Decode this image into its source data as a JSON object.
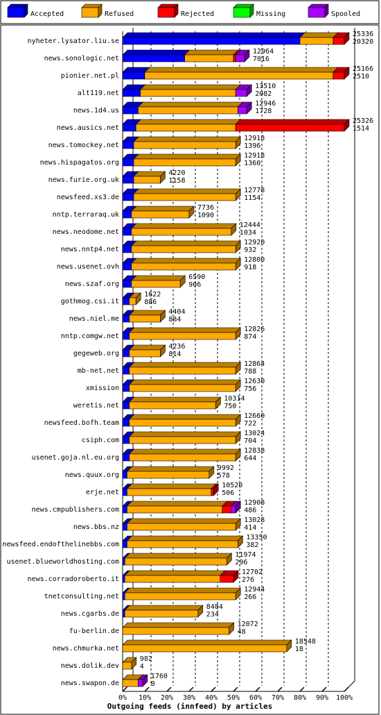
{
  "chart_data": {
    "type": "bar",
    "orientation": "horizontal",
    "stacked": true,
    "title": "Outgoing feeds (innfeed) by articles",
    "xlabel": "",
    "ylabel": "",
    "xlim": [
      0,
      100
    ],
    "x_ticks": [
      "0%",
      "10%",
      "20%",
      "30%",
      "40%",
      "50%",
      "60%",
      "70%",
      "80%",
      "90%",
      "100%"
    ],
    "grid": true,
    "legend_position": "top",
    "series": [
      {
        "name": "Accepted",
        "color": "#0000ff"
      },
      {
        "name": "Refused",
        "color": "#ffaa00"
      },
      {
        "name": "Rejected",
        "color": "#ff0000"
      },
      {
        "name": "Missing",
        "color": "#00ff00"
      },
      {
        "name": "Spooled",
        "color": "#aa00ff"
      }
    ],
    "rows": [
      {
        "label": "nyheter.lysator.liu.se",
        "offered": "25336",
        "accepted": "20320",
        "pct": [
          80,
          15,
          5,
          0,
          0
        ]
      },
      {
        "label": "news.sonologic.net",
        "offered": "12964",
        "accepted": "7016",
        "pct": [
          28,
          22,
          1,
          0,
          4
        ]
      },
      {
        "label": "pionier.net.pl",
        "offered": "25166",
        "accepted": "2510",
        "pct": [
          10,
          85,
          5,
          0,
          0
        ]
      },
      {
        "label": "alt119.net",
        "offered": "13510",
        "accepted": "2082",
        "pct": [
          8,
          43,
          0,
          0,
          5
        ]
      },
      {
        "label": "news.1d4.us",
        "offered": "12946",
        "accepted": "1728",
        "pct": [
          7,
          45,
          0,
          0,
          4
        ]
      },
      {
        "label": "news.ausics.net",
        "offered": "25326",
        "accepted": "1514",
        "pct": [
          6,
          45,
          49,
          0,
          0
        ]
      },
      {
        "label": "news.tomockey.net",
        "offered": "12918",
        "accepted": "1396",
        "pct": [
          5,
          46,
          0,
          0,
          0
        ]
      },
      {
        "label": "news.hispagatos.org",
        "offered": "12918",
        "accepted": "1360",
        "pct": [
          5,
          46,
          0,
          0,
          0
        ]
      },
      {
        "label": "news.furie.org.uk",
        "offered": "4220",
        "accepted": "1158",
        "pct": [
          5,
          12,
          0,
          0,
          0
        ]
      },
      {
        "label": "newsfeed.xs3.de",
        "offered": "12778",
        "accepted": "1154",
        "pct": [
          5,
          46,
          0,
          0,
          0
        ]
      },
      {
        "label": "nntp.terraraq.uk",
        "offered": "7736",
        "accepted": "1090",
        "pct": [
          4,
          26,
          0,
          0,
          0
        ]
      },
      {
        "label": "news.neodome.net",
        "offered": "12444",
        "accepted": "1034",
        "pct": [
          4,
          45,
          0,
          0,
          0
        ]
      },
      {
        "label": "news.nntp4.net",
        "offered": "12920",
        "accepted": "932",
        "pct": [
          4,
          47,
          0,
          0,
          0
        ]
      },
      {
        "label": "news.usenet.ovh",
        "offered": "12800",
        "accepted": "918",
        "pct": [
          4,
          47,
          0,
          0,
          0
        ]
      },
      {
        "label": "news.szaf.org",
        "offered": "6590",
        "accepted": "906",
        "pct": [
          4,
          22,
          0,
          0,
          0
        ]
      },
      {
        "label": "gothmog.csi.it",
        "offered": "1622",
        "accepted": "886",
        "pct": [
          3,
          3,
          0,
          0,
          0
        ]
      },
      {
        "label": "news.niel.me",
        "offered": "4404",
        "accepted": "884",
        "pct": [
          3,
          14,
          0,
          0,
          0
        ]
      },
      {
        "label": "nntp.comgw.net",
        "offered": "12826",
        "accepted": "874",
        "pct": [
          3,
          48,
          0,
          0,
          0
        ]
      },
      {
        "label": "gegeweb.org",
        "offered": "4236",
        "accepted": "814",
        "pct": [
          3,
          14,
          0,
          0,
          0
        ]
      },
      {
        "label": "mb-net.net",
        "offered": "12864",
        "accepted": "788",
        "pct": [
          3,
          48,
          0,
          0,
          0
        ]
      },
      {
        "label": "xmission",
        "offered": "12630",
        "accepted": "756",
        "pct": [
          3,
          48,
          0,
          0,
          0
        ]
      },
      {
        "label": "weretis.net",
        "offered": "10314",
        "accepted": "750",
        "pct": [
          3,
          39,
          0,
          0,
          0
        ]
      },
      {
        "label": "newsfeed.bofh.team",
        "offered": "12660",
        "accepted": "722",
        "pct": [
          3,
          48,
          0,
          0,
          0
        ]
      },
      {
        "label": "csiph.com",
        "offered": "13024",
        "accepted": "704",
        "pct": [
          3,
          48,
          0,
          0,
          0
        ]
      },
      {
        "label": "usenet.goja.nl.eu.org",
        "offered": "12838",
        "accepted": "644",
        "pct": [
          3,
          48,
          0,
          0,
          0
        ]
      },
      {
        "label": "news.quux.org",
        "offered": "9992",
        "accepted": "578",
        "pct": [
          2,
          37,
          0,
          0,
          0
        ]
      },
      {
        "label": "erje.net",
        "offered": "10520",
        "accepted": "506",
        "pct": [
          2,
          38,
          1,
          0,
          0
        ]
      },
      {
        "label": "news.cmpublishers.com",
        "offered": "12908",
        "accepted": "486",
        "pct": [
          2,
          43,
          4,
          0,
          2
        ]
      },
      {
        "label": "news.bbs.nz",
        "offered": "13028",
        "accepted": "414",
        "pct": [
          2,
          49,
          0,
          0,
          0
        ]
      },
      {
        "label": "newsfeed.endofthelinebbs.com",
        "offered": "13350",
        "accepted": "382",
        "pct": [
          2,
          50,
          0,
          0,
          0
        ]
      },
      {
        "label": "usenet.blueworldhosting.com",
        "offered": "11974",
        "accepted": "296",
        "pct": [
          1,
          46,
          0,
          0,
          0
        ]
      },
      {
        "label": "news.corradoroberto.it",
        "offered": "12702",
        "accepted": "276",
        "pct": [
          1,
          43,
          6,
          0,
          0
        ]
      },
      {
        "label": "tnetconsulting.net",
        "offered": "12944",
        "accepted": "266",
        "pct": [
          1,
          50,
          0,
          0,
          0
        ]
      },
      {
        "label": "news.cgarbs.de",
        "offered": "8484",
        "accepted": "234",
        "pct": [
          1,
          33,
          0,
          0,
          0
        ]
      },
      {
        "label": "fu-berlin.de",
        "offered": "12072",
        "accepted": "48",
        "pct": [
          0,
          48,
          0,
          0,
          0
        ]
      },
      {
        "label": "news.chmurka.net",
        "offered": "18548",
        "accepted": "18",
        "pct": [
          0,
          74,
          0,
          0,
          0
        ]
      },
      {
        "label": "news.dolik.dev",
        "offered": "982",
        "accepted": "4",
        "pct": [
          0,
          4,
          0,
          0,
          0
        ]
      },
      {
        "label": "news.swapon.de",
        "offered": "1760",
        "accepted": "0",
        "pct": [
          0,
          7,
          0,
          0,
          2
        ]
      }
    ]
  }
}
